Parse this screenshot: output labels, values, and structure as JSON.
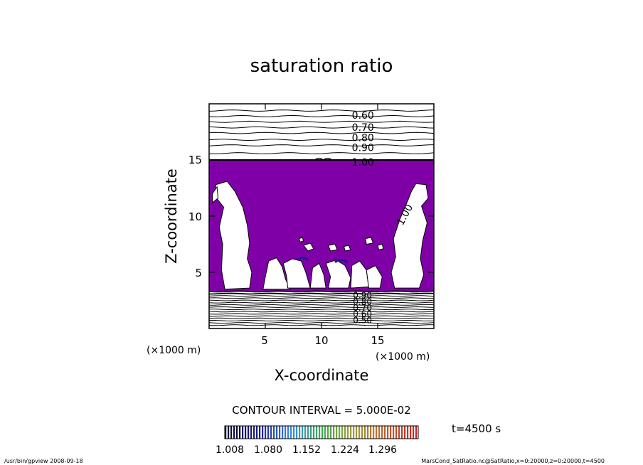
{
  "chart_data": {
    "type": "contour",
    "title": "saturation ratio",
    "xlabel": "X-coordinate",
    "ylabel": "Z-coordinate",
    "x_unit": "(×1000 m)",
    "z_unit": "(×1000 m)",
    "xlim": [
      0,
      20
    ],
    "ylim": [
      0,
      20
    ],
    "x_ticks": [
      5,
      10,
      15
    ],
    "y_ticks": [
      5,
      10,
      15
    ],
    "x_tick_labels": [
      "5",
      "10",
      "15"
    ],
    "y_tick_labels": [
      "5",
      "10",
      "15"
    ],
    "contour_interval_text": "CONTOUR INTERVAL = 5.000E-02",
    "time_text": "t=4500 s",
    "fill_color": "#8000a8",
    "upper_contour_labels": [
      "0.60",
      "0.70",
      "0.80",
      "0.90",
      "1.00"
    ],
    "upper_contour_levels": [
      0.6,
      0.7,
      0.8,
      0.9,
      1.0
    ],
    "inline_label": "1.00",
    "lower_contour_labels": [
      "0.90",
      "0.80",
      "0.70",
      "0.60",
      "0.50"
    ],
    "colorbar": {
      "tick_labels": [
        "1.008",
        "1.080",
        "1.152",
        "1.224",
        "1.296"
      ],
      "min": 0.972,
      "max": 1.332
    },
    "footer_left": "/usr/bin/gpview   2008-09-18",
    "footer_right": "MarsCond_SatRatio.nc@SatRatio,x=0:20000,z=0:20000,t=4500"
  }
}
